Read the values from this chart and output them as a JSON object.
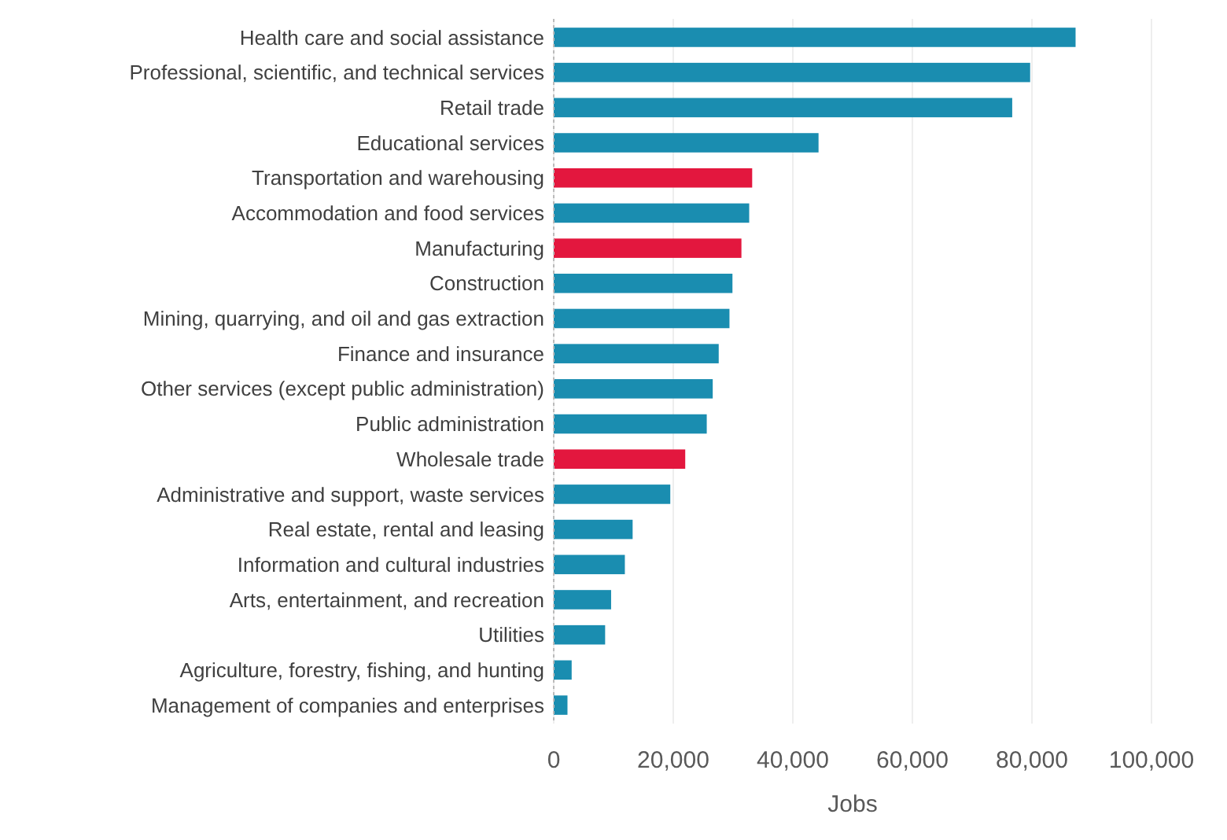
{
  "chart_data": {
    "type": "bar",
    "orientation": "horizontal",
    "xlabel": "Jobs",
    "categories": [
      "Health care and social assistance",
      "Professional, scientific, and technical services",
      "Retail trade",
      "Educational services",
      "Transportation and warehousing",
      "Accommodation and food services",
      "Manufacturing",
      "Construction",
      "Mining, quarrying, and oil and gas extraction",
      "Finance and insurance",
      "Other services (except public administration)",
      "Public administration",
      "Wholesale trade",
      "Administrative and support, waste services",
      "Real estate, rental and leasing",
      "Information and cultural industries",
      "Arts, entertainment, and recreation",
      "Utilities",
      "Agriculture, forestry, fishing, and hunting",
      "Management of companies and enterprises"
    ],
    "values": [
      87300,
      79700,
      76700,
      44300,
      33200,
      32700,
      31400,
      29900,
      29400,
      27600,
      26600,
      25600,
      22000,
      19500,
      13200,
      11900,
      9600,
      8600,
      3000,
      2300
    ],
    "colors": [
      "#1a8db0",
      "#1a8db0",
      "#1a8db0",
      "#1a8db0",
      "#e3173e",
      "#1a8db0",
      "#e3173e",
      "#1a8db0",
      "#1a8db0",
      "#1a8db0",
      "#1a8db0",
      "#1a8db0",
      "#e3173e",
      "#1a8db0",
      "#1a8db0",
      "#1a8db0",
      "#1a8db0",
      "#1a8db0",
      "#1a8db0",
      "#1a8db0"
    ],
    "xlim": [
      0,
      100000
    ],
    "xticks": [
      {
        "value": 0,
        "label": "0"
      },
      {
        "value": 20000,
        "label": "20,000"
      },
      {
        "value": 40000,
        "label": "40,000"
      },
      {
        "value": 60000,
        "label": "60,000"
      },
      {
        "value": 80000,
        "label": "80,000"
      },
      {
        "value": 100000,
        "label": "100,000"
      }
    ],
    "grid": "x"
  }
}
